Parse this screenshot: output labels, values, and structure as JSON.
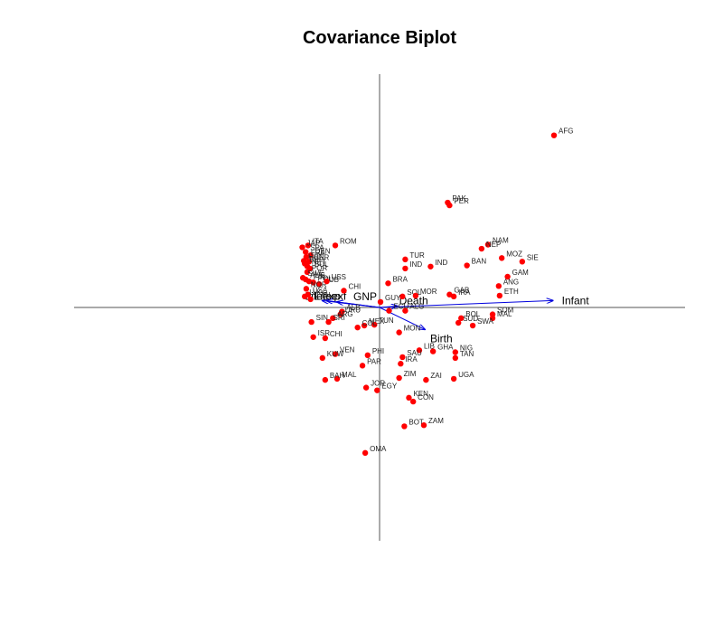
{
  "chart_data": {
    "type": "scatter",
    "title": "Covariance Biplot",
    "xlabel": "",
    "ylabel": "",
    "xlim": [
      -1.0,
      1.0
    ],
    "ylim": [
      -0.85,
      0.85
    ],
    "grid": false,
    "point_color": "#ff0000",
    "arrow_color": "#0000dd",
    "axis_color": "#555555",
    "points": [
      {
        "label": "AFG",
        "x": 0.571,
        "y": 0.627
      },
      {
        "label": "PAK",
        "x": 0.223,
        "y": 0.382
      },
      {
        "label": "PER",
        "x": 0.229,
        "y": 0.372
      },
      {
        "label": "NAM",
        "x": 0.355,
        "y": 0.229
      },
      {
        "label": "NEP",
        "x": 0.334,
        "y": 0.214
      },
      {
        "label": "MOZ",
        "x": 0.4,
        "y": 0.18
      },
      {
        "label": "SIE",
        "x": 0.467,
        "y": 0.167
      },
      {
        "label": "TUR",
        "x": 0.084,
        "y": 0.175
      },
      {
        "label": "IND",
        "x": 0.084,
        "y": 0.142
      },
      {
        "label": "IND",
        "x": 0.167,
        "y": 0.149
      },
      {
        "label": "BAN",
        "x": 0.286,
        "y": 0.153
      },
      {
        "label": "GAM",
        "x": 0.419,
        "y": 0.112
      },
      {
        "label": "ANG",
        "x": 0.39,
        "y": 0.078
      },
      {
        "label": "ETH",
        "x": 0.393,
        "y": 0.043
      },
      {
        "label": "BRA",
        "x": 0.028,
        "y": 0.088
      },
      {
        "label": "SOL",
        "x": 0.075,
        "y": 0.04
      },
      {
        "label": "MOR",
        "x": 0.118,
        "y": 0.043
      },
      {
        "label": "GAB",
        "x": 0.229,
        "y": 0.047
      },
      {
        "label": "IRA",
        "x": 0.243,
        "y": 0.04
      },
      {
        "label": "GUY",
        "x": 0.003,
        "y": 0.02
      },
      {
        "label": "ECU",
        "x": 0.031,
        "y": -0.012
      },
      {
        "label": "ALG",
        "x": 0.084,
        "y": -0.012
      },
      {
        "label": "SOM",
        "x": 0.37,
        "y": -0.025
      },
      {
        "label": "MAL",
        "x": 0.37,
        "y": -0.039
      },
      {
        "label": "BOL",
        "x": 0.267,
        "y": -0.039
      },
      {
        "label": "SUD",
        "x": 0.258,
        "y": -0.056
      },
      {
        "label": "SWA",
        "x": 0.305,
        "y": -0.066
      },
      {
        "label": "MON",
        "x": 0.064,
        "y": -0.091
      },
      {
        "label": "LIB",
        "x": 0.13,
        "y": -0.156
      },
      {
        "label": "GHA",
        "x": 0.175,
        "y": -0.16
      },
      {
        "label": "NIG",
        "x": 0.248,
        "y": -0.163
      },
      {
        "label": "TAN",
        "x": 0.248,
        "y": -0.184
      },
      {
        "label": "SAU",
        "x": 0.075,
        "y": -0.181
      },
      {
        "label": "IRA",
        "x": 0.069,
        "y": -0.205
      },
      {
        "label": "ZIM",
        "x": 0.064,
        "y": -0.257
      },
      {
        "label": "ZAI",
        "x": 0.152,
        "y": -0.264
      },
      {
        "label": "UGA",
        "x": 0.243,
        "y": -0.26
      },
      {
        "label": "KEN",
        "x": 0.096,
        "y": -0.329
      },
      {
        "label": "CON",
        "x": 0.11,
        "y": -0.343
      },
      {
        "label": "BOT",
        "x": 0.081,
        "y": -0.433
      },
      {
        "label": "ZAM",
        "x": 0.145,
        "y": -0.429
      },
      {
        "label": "OMA",
        "x": -0.047,
        "y": -0.53
      },
      {
        "label": "JOR",
        "x": -0.044,
        "y": -0.292
      },
      {
        "label": "EGY",
        "x": -0.008,
        "y": -0.302
      },
      {
        "label": "PHI",
        "x": -0.039,
        "y": -0.174
      },
      {
        "label": "PAR",
        "x": -0.056,
        "y": -0.212
      },
      {
        "label": "MEX",
        "x": -0.05,
        "y": -0.066
      },
      {
        "label": "TUN",
        "x": -0.017,
        "y": -0.063
      },
      {
        "label": "COL",
        "x": -0.072,
        "y": -0.073
      },
      {
        "label": "VEN",
        "x": -0.145,
        "y": -0.17
      },
      {
        "label": "KUW",
        "x": -0.187,
        "y": -0.184
      },
      {
        "label": "MAL",
        "x": -0.139,
        "y": -0.26
      },
      {
        "label": "BAH",
        "x": -0.178,
        "y": -0.264
      },
      {
        "label": "ALB",
        "x": -0.123,
        "y": -0.015
      },
      {
        "label": "URU",
        "x": -0.128,
        "y": -0.025
      },
      {
        "label": "ARG",
        "x": -0.153,
        "y": -0.039
      },
      {
        "label": "SIN",
        "x": -0.223,
        "y": -0.053
      },
      {
        "label": "SRI",
        "x": -0.167,
        "y": -0.053
      },
      {
        "label": "ISR",
        "x": -0.217,
        "y": -0.108
      },
      {
        "label": "CHI",
        "x": -0.178,
        "y": -0.112
      },
      {
        "label": "ROM",
        "x": -0.145,
        "y": 0.226
      },
      {
        "label": "ITA",
        "x": -0.234,
        "y": 0.226
      },
      {
        "label": "JAP",
        "x": -0.253,
        "y": 0.219
      },
      {
        "label": "SPA",
        "x": -0.242,
        "y": 0.202
      },
      {
        "label": "DEN",
        "x": -0.226,
        "y": 0.19
      },
      {
        "label": "FRA",
        "x": -0.24,
        "y": 0.184
      },
      {
        "label": "HUN",
        "x": -0.248,
        "y": 0.17
      },
      {
        "label": "GER",
        "x": -0.231,
        "y": 0.167
      },
      {
        "label": "BEL",
        "x": -0.245,
        "y": 0.16
      },
      {
        "label": "NET",
        "x": -0.237,
        "y": 0.15
      },
      {
        "label": "BUL",
        "x": -0.228,
        "y": 0.142
      },
      {
        "label": "POR",
        "x": -0.237,
        "y": 0.129
      },
      {
        "label": "SWE",
        "x": -0.251,
        "y": 0.108
      },
      {
        "label": "AUS",
        "x": -0.242,
        "y": 0.102
      },
      {
        "label": "FIN",
        "x": -0.231,
        "y": 0.095
      },
      {
        "label": "POL",
        "x": -0.217,
        "y": 0.091
      },
      {
        "label": "CUB",
        "x": -0.198,
        "y": 0.085
      },
      {
        "label": "CHI",
        "x": -0.117,
        "y": 0.061
      },
      {
        "label": "NOR",
        "x": -0.24,
        "y": 0.068
      },
      {
        "label": "USA",
        "x": -0.234,
        "y": 0.047
      },
      {
        "label": "U.K.",
        "x": -0.245,
        "y": 0.04
      },
      {
        "label": "CAN",
        "x": -0.226,
        "y": 0.03
      },
      {
        "label": "USS",
        "x": -0.173,
        "y": 0.095
      }
    ],
    "arrows": [
      {
        "label": "Infant",
        "x": 0.567,
        "y": 0.025
      },
      {
        "label": "Birth",
        "x": 0.148,
        "y": -0.08
      },
      {
        "label": "Death",
        "x": 0.058,
        "y": 0.005
      },
      {
        "label": "GNP",
        "x": -0.139,
        "y": 0.02
      },
      {
        "label": "Lifeexp",
        "x": -0.187,
        "y": 0.025
      },
      {
        "label": "Lifeexf",
        "x": -0.173,
        "y": 0.025
      }
    ]
  }
}
